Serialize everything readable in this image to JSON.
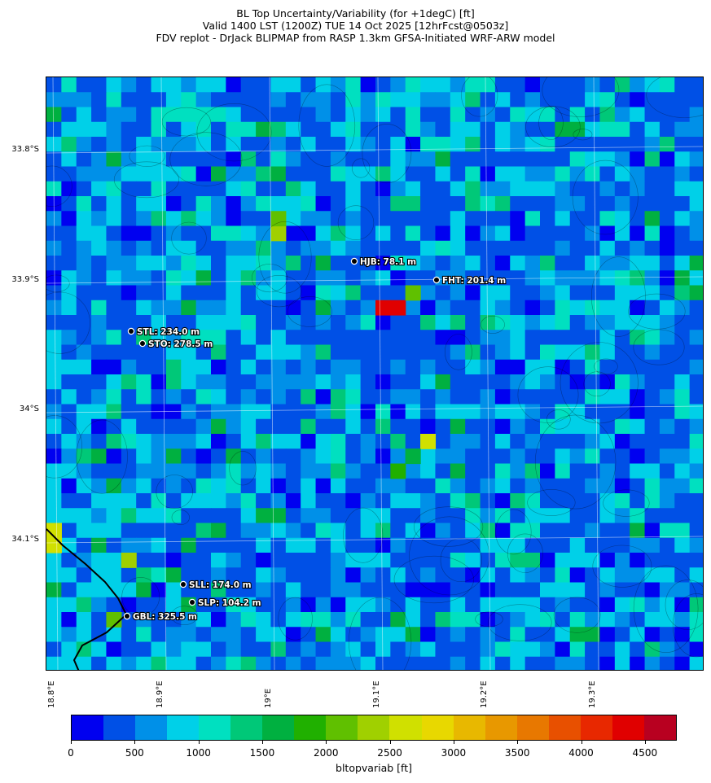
{
  "title": {
    "line1": "BL Top Uncertainty/Variability (for +1degC) [ft]",
    "line2": "Valid 1400 LST (1200Z) TUE 14 Oct 2025 [12hrFcst@0503z]",
    "line3": "FDV replot - DrJack BLIPMAP from RASP 1.3km GFSA-Initiated WRF-ARW model"
  },
  "axes": {
    "lat_ticks": [
      "33.8°S",
      "33.9°S",
      "34°S",
      "34.1°S"
    ],
    "lon_ticks": [
      "18.8°E",
      "18.9°E",
      "19°E",
      "19.1°E",
      "19.2°E",
      "19.3°E"
    ]
  },
  "sites": [
    {
      "id": "HJB",
      "label": "HJB: 78.1 m"
    },
    {
      "id": "FHT",
      "label": "FHT: 201.4 m"
    },
    {
      "id": "STL",
      "label": "STL: 234.0 m"
    },
    {
      "id": "STO",
      "label": "STO: 278.5 m"
    },
    {
      "id": "SLL",
      "label": "SLL: 174.0 m"
    },
    {
      "id": "SLP",
      "label": "SLP: 104.2 m"
    },
    {
      "id": "GBL",
      "label": "GBL: 325.5 m"
    }
  ],
  "colorbar": {
    "title": "bltopvariab [ft]",
    "tick_labels": [
      "0",
      "500",
      "1000",
      "1500",
      "2000",
      "2500",
      "3000",
      "3500",
      "4000",
      "4500"
    ],
    "colors": [
      "#0000f0",
      "#0050e6",
      "#0090e8",
      "#00d0e8",
      "#00e0c0",
      "#00c878",
      "#00b040",
      "#20b000",
      "#60c000",
      "#a0d000",
      "#d0e000",
      "#e8d800",
      "#e8b800",
      "#e89800",
      "#e87800",
      "#e85000",
      "#e82800",
      "#e00000",
      "#b80020"
    ]
  },
  "map": {
    "field": "bltopvariab",
    "units": "ft",
    "coastline_color": "#000000"
  }
}
